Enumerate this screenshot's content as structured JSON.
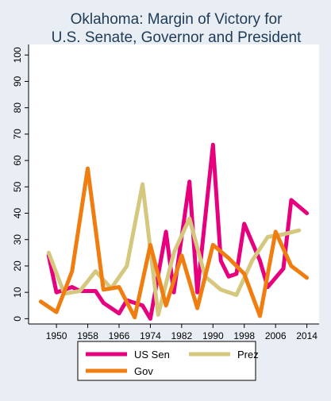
{
  "chart_data": {
    "type": "line",
    "title": "Oklahoma: Margin of Victory for\nU.S. Senate, Governor and President",
    "xlabel": "",
    "ylabel": "",
    "x_ticks": [
      1950,
      1958,
      1966,
      1974,
      1982,
      1990,
      1998,
      2006,
      2014
    ],
    "y_ticks": [
      0,
      10,
      20,
      30,
      40,
      50,
      60,
      70,
      80,
      90,
      100
    ],
    "xlim": [
      1944.5,
      2015.5
    ],
    "ylim": [
      -2,
      104
    ],
    "grid": false,
    "legend_position": "bottom",
    "series": [
      {
        "name": "US Sen",
        "color": "#e6007e",
        "x": [
          1948,
          1950,
          1954,
          1956,
          1960,
          1962,
          1966,
          1968,
          1972,
          1974,
          1978,
          1980,
          1984,
          1986,
          1990,
          1992,
          1994,
          1996,
          1998,
          2002,
          2004,
          2008,
          2010,
          2014
        ],
        "y": [
          24,
          10,
          12,
          10.5,
          10.5,
          6,
          2,
          7,
          5,
          0,
          33,
          10,
          52,
          10,
          66,
          22,
          16,
          17,
          36,
          22,
          12,
          19,
          45,
          40
        ]
      },
      {
        "name": "Prez",
        "color": "#d6c77e",
        "x": [
          1948,
          1952,
          1956,
          1960,
          1964,
          1968,
          1972,
          1976,
          1980,
          1984,
          1988,
          1992,
          1996,
          2000,
          2004,
          2008,
          2012
        ],
        "y": [
          25,
          9.5,
          10.5,
          18,
          11.5,
          20,
          51,
          1.5,
          25,
          38,
          16,
          11,
          9,
          22,
          31,
          32,
          33.5
        ]
      },
      {
        "name": "Gov",
        "color": "#f07d10",
        "x": [
          1946,
          1950,
          1954,
          1958,
          1962,
          1966,
          1970,
          1974,
          1978,
          1982,
          1986,
          1990,
          1994,
          1998,
          2002,
          2006,
          2010,
          2014
        ],
        "y": [
          6.5,
          2.5,
          18,
          57,
          11,
          12,
          0.5,
          28,
          5,
          24,
          4,
          28,
          23,
          17,
          1,
          33,
          20,
          15.5
        ]
      }
    ]
  }
}
